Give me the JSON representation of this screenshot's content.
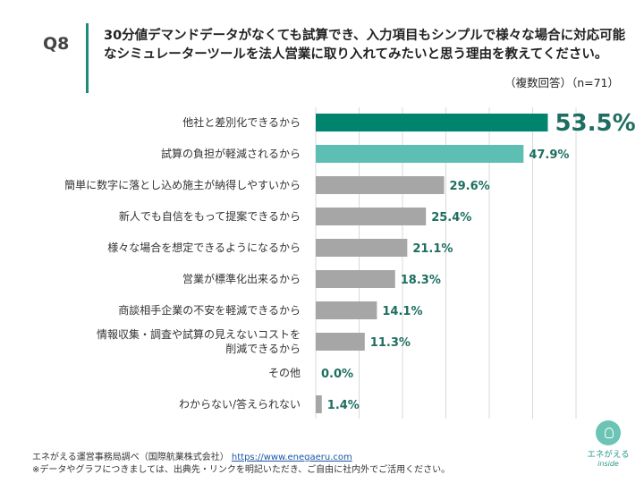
{
  "question": {
    "number": "Q8",
    "text": "30分値デマンドデータがなくても試算でき、入力項目もシンプルで様々な場合に対応可能なシミュレーターツールを法人営業に取り入れてみたいと思う理由を教えてください。",
    "note": "（複数回答）（n=71）"
  },
  "chart_data": {
    "type": "bar",
    "orientation": "horizontal",
    "categories": [
      "他社と差別化できるから",
      "試算の負担が軽減されるから",
      "簡単に数字に落とし込め施主が納得しやすいから",
      "新人でも自信をもって提案できるから",
      "様々な場合を想定できるようになるから",
      "営業が標準化出来るから",
      "商談相手企業の不安を軽減できるから",
      "情報収集・調査や試算の見えないコストを\n削減できるから",
      "その他",
      "わからない/答えられない"
    ],
    "values": [
      53.5,
      47.9,
      29.6,
      25.4,
      21.1,
      18.3,
      14.1,
      11.3,
      0.0,
      1.4
    ],
    "labels": [
      "53.5%",
      "47.9%",
      "29.6%",
      "25.4%",
      "21.1%",
      "18.3%",
      "14.1%",
      "11.3%",
      "0.0%",
      "1.4%"
    ],
    "xlim": [
      0,
      60
    ],
    "grid": true,
    "colors": {
      "top": "#00846e",
      "second": "#5dbfb3",
      "other": "#a6a6a6",
      "label": "#1d6e60"
    }
  },
  "footer": {
    "source": "エネがえる運営事務局調べ（国際航業株式会社）",
    "url": "https://www.enegaeru.com",
    "disclaimer": "※データやグラフにつきましては、出典先・リンクを明記いただき、ご自由に社内外でご活用ください。"
  },
  "logo": {
    "name": "エネがえる",
    "sub": "inside"
  }
}
